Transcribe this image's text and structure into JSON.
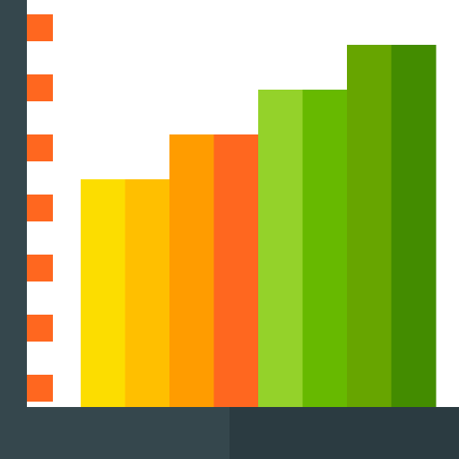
{
  "icon": {
    "name": "bar-chart-icon",
    "colors": {
      "axis_dark": "#35474d",
      "axis_darker": "#2b3b41",
      "tick": "#ff671f",
      "background": "#ffffff"
    },
    "tick_count": 7,
    "bars": [
      {
        "level": 0.56,
        "left_color": "#fcdd00",
        "right_color": "#ffbf00"
      },
      {
        "level": 0.67,
        "left_color": "#ff9c00",
        "right_color": "#ff671f"
      },
      {
        "level": 0.78,
        "left_color": "#94d22a",
        "right_color": "#67b900"
      },
      {
        "level": 0.89,
        "left_color": "#67a500",
        "right_color": "#438c00"
      }
    ]
  }
}
